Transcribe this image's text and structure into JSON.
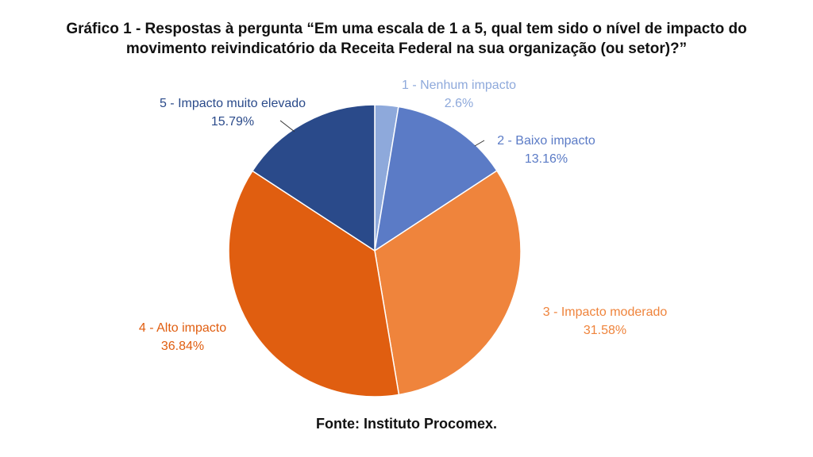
{
  "title_lines": [
    "Gráfico 1 - Respostas à pergunta “Em uma escala de 1 a 5, qual tem sido o nível de impacto do",
    "movimento reivindicatório da Receita Federal na sua organização (ou setor)?”"
  ],
  "source": "Fonte: Instituto Procomex.",
  "chart_data": {
    "type": "pie",
    "slices": [
      {
        "label": "1 - Nenhum impacto",
        "value": 2.6,
        "value_label": "2.6%",
        "color": "#8ea9db"
      },
      {
        "label": "2 - Baixo impacto",
        "value": 13.16,
        "value_label": "13.16%",
        "color": "#5b7bc6"
      },
      {
        "label": "3 - Impacto moderado",
        "value": 31.58,
        "value_label": "31.58%",
        "color": "#ef843c"
      },
      {
        "label": "4 - Alto impacto",
        "value": 36.84,
        "value_label": "36.84%",
        "color": "#e05e10"
      },
      {
        "label": "5 - Impacto muito elevado",
        "value": 15.79,
        "value_label": "15.79%",
        "color": "#2a4a8a"
      }
    ]
  }
}
